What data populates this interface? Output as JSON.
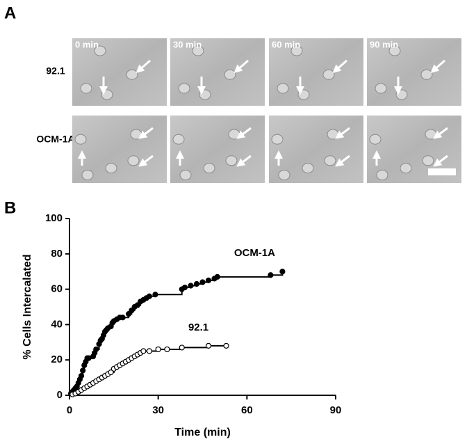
{
  "panel_a": {
    "label": "A",
    "rows": [
      "92.1",
      "OCM-1A"
    ],
    "times": [
      "0 min",
      "30 min",
      "60 min",
      "90 min"
    ]
  },
  "chart_data": {
    "type": "line",
    "label": "B",
    "xlabel": "Time (min)",
    "ylabel": "% Cells Intercalated",
    "xlim": [
      0,
      90
    ],
    "xticks": [
      0,
      30,
      60,
      90
    ],
    "ylim": [
      0,
      100
    ],
    "yticks": [
      0,
      20,
      40,
      60,
      80,
      100
    ],
    "step": true,
    "series": [
      {
        "name": "OCM-1A",
        "color": "#000000",
        "marker_fill": "#000000",
        "x": [
          0.5,
          1,
          1.5,
          2,
          2.5,
          3,
          3.5,
          4,
          4.5,
          5,
          5.5,
          6,
          6.5,
          8,
          8.5,
          9,
          10,
          10.5,
          11,
          11.5,
          12,
          12.5,
          13,
          14,
          14.5,
          15,
          16,
          17,
          18,
          20,
          21,
          22,
          23,
          24,
          25,
          26,
          27,
          29,
          38,
          39,
          41,
          43,
          45,
          47,
          49,
          50,
          68,
          72
        ],
        "values": [
          1,
          2,
          3,
          4,
          5,
          7,
          9,
          11,
          14,
          17,
          19,
          21,
          21,
          22,
          24,
          26,
          29,
          31,
          32,
          34,
          36,
          37,
          38,
          39,
          41,
          42,
          43,
          44,
          44,
          46,
          48,
          50,
          51,
          53,
          54,
          55,
          56,
          57,
          60,
          61,
          62,
          63,
          64,
          65,
          66,
          67,
          68,
          70
        ]
      },
      {
        "name": "92.1",
        "color": "#000000",
        "marker_fill": "#ffffff",
        "x": [
          1,
          2,
          3,
          4,
          5,
          6,
          7,
          8,
          9,
          10,
          11,
          12,
          13,
          14,
          15,
          16,
          17,
          18,
          19,
          20,
          21,
          22,
          23,
          24,
          25,
          27,
          30,
          33,
          38,
          47,
          53
        ],
        "values": [
          0.5,
          1,
          2,
          3,
          4,
          5,
          6,
          7,
          8,
          9,
          10,
          11,
          12,
          13,
          15,
          16,
          17,
          18,
          19,
          20,
          21,
          22,
          23,
          24,
          25,
          25,
          26,
          26,
          27,
          28,
          28
        ]
      }
    ]
  }
}
